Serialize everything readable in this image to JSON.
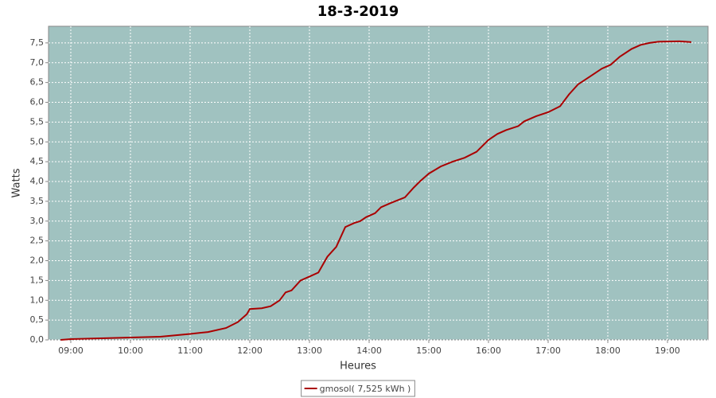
{
  "chart_data": {
    "type": "line",
    "title": "18-3-2019",
    "x_label": "Heures",
    "y_label": "Watts",
    "x": [
      8.83,
      9.0,
      9.5,
      10.0,
      10.5,
      11.0,
      11.3,
      11.6,
      11.8,
      11.95,
      12.0,
      12.2,
      12.35,
      12.5,
      12.6,
      12.7,
      12.85,
      13.0,
      13.15,
      13.3,
      13.45,
      13.6,
      13.75,
      13.85,
      13.95,
      14.1,
      14.2,
      14.35,
      14.6,
      14.75,
      14.85,
      15.0,
      15.2,
      15.4,
      15.6,
      15.8,
      16.0,
      16.15,
      16.3,
      16.5,
      16.6,
      16.8,
      17.0,
      17.2,
      17.35,
      17.5,
      17.7,
      17.9,
      18.05,
      18.2,
      18.4,
      18.55,
      18.7,
      18.85,
      19.2,
      19.4
    ],
    "series": [
      {
        "name": "gmosol( 7,525 kWh )",
        "color": "#aa0000",
        "values": [
          0.0,
          0.02,
          0.04,
          0.06,
          0.08,
          0.15,
          0.2,
          0.3,
          0.45,
          0.65,
          0.78,
          0.8,
          0.85,
          1.0,
          1.2,
          1.25,
          1.5,
          1.6,
          1.7,
          2.1,
          2.35,
          2.85,
          2.95,
          3.0,
          3.1,
          3.2,
          3.35,
          3.45,
          3.6,
          3.85,
          4.0,
          4.2,
          4.38,
          4.5,
          4.6,
          4.75,
          5.05,
          5.2,
          5.3,
          5.4,
          5.52,
          5.65,
          5.75,
          5.9,
          6.2,
          6.45,
          6.65,
          6.85,
          6.95,
          7.15,
          7.35,
          7.45,
          7.5,
          7.53,
          7.54,
          7.52
        ]
      }
    ],
    "xlim": [
      8.627,
      19.68
    ],
    "xticks": [
      {
        "value": 9,
        "label": "09:00"
      },
      {
        "value": 10,
        "label": "10:00"
      },
      {
        "value": 11,
        "label": "11:00"
      },
      {
        "value": 12,
        "label": "12:00"
      },
      {
        "value": 13,
        "label": "13:00"
      },
      {
        "value": 14,
        "label": "14:00"
      },
      {
        "value": 15,
        "label": "15:00"
      },
      {
        "value": 16,
        "label": "16:00"
      },
      {
        "value": 17,
        "label": "17:00"
      },
      {
        "value": 18,
        "label": "18:00"
      },
      {
        "value": 19,
        "label": "19:00"
      }
    ],
    "ylim": [
      0,
      7.92
    ],
    "yticks": [
      {
        "value": 0,
        "label": "0,0"
      },
      {
        "value": 0.5,
        "label": "0,5"
      },
      {
        "value": 1,
        "label": "1,0"
      },
      {
        "value": 1.5,
        "label": "1,5"
      },
      {
        "value": 2,
        "label": "2,0"
      },
      {
        "value": 2.5,
        "label": "2,5"
      },
      {
        "value": 3,
        "label": "3,0"
      },
      {
        "value": 3.5,
        "label": "3,5"
      },
      {
        "value": 4,
        "label": "4,0"
      },
      {
        "value": 4.5,
        "label": "4,5"
      },
      {
        "value": 5,
        "label": "5,0"
      },
      {
        "value": 5.5,
        "label": "5,5"
      },
      {
        "value": 6,
        "label": "6,0"
      },
      {
        "value": 6.5,
        "label": "6,5"
      },
      {
        "value": 7,
        "label": "7,0"
      },
      {
        "value": 7.5,
        "label": "7,5"
      }
    ],
    "grid": true,
    "plot_background": "#a0c2c0"
  }
}
